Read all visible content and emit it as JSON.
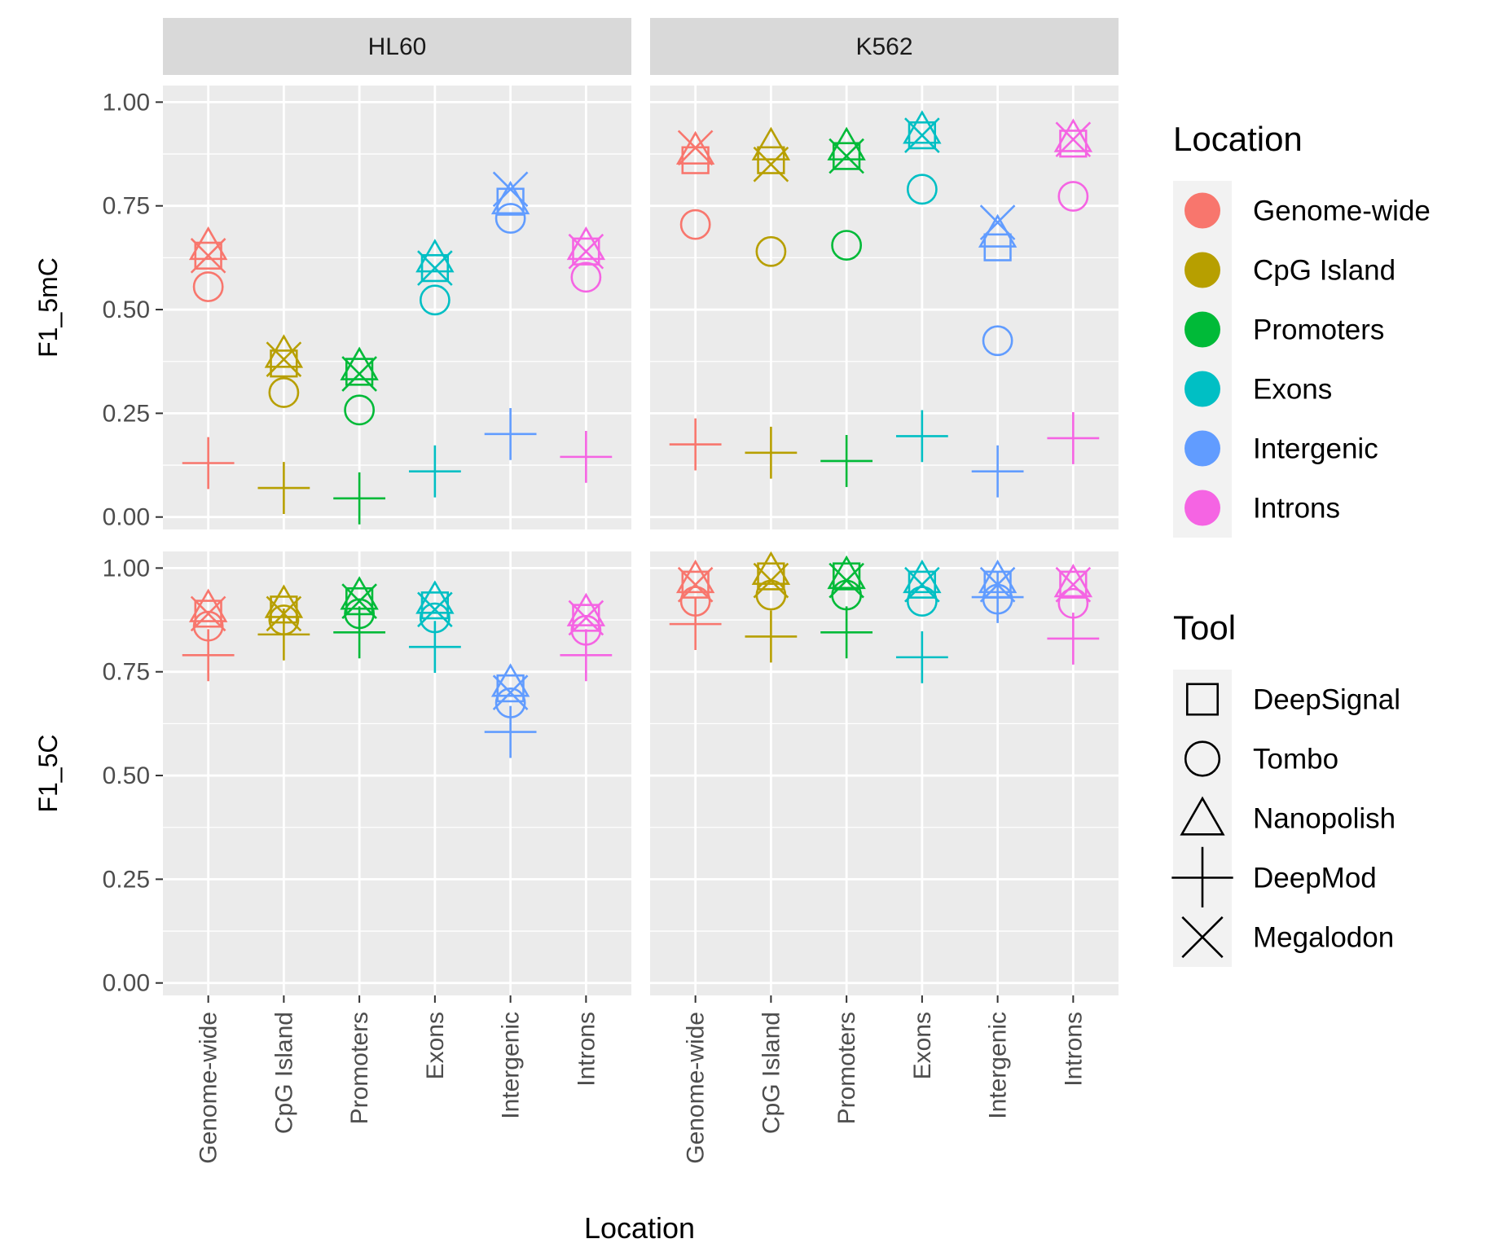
{
  "chart_data": {
    "type": "scatter",
    "xlabel": "Location",
    "categories": [
      "Genome-wide",
      "CpG Island",
      "Promoters",
      "Exons",
      "Intergenic",
      "Introns"
    ],
    "columns": [
      "HL60",
      "K562"
    ],
    "rows": [
      "F1_5mC",
      "F1_5C"
    ],
    "ylim": [
      -0.03,
      1.04
    ],
    "yticks": [
      "0.00",
      "0.25",
      "0.50",
      "0.75",
      "1.00"
    ],
    "ytick_values": [
      0,
      0.25,
      0.5,
      0.75,
      1.0
    ],
    "grid": true,
    "tools": [
      "DeepSignal",
      "Tombo",
      "Nanopolish",
      "DeepMod",
      "Megalodon"
    ],
    "tool_shapes": {
      "DeepSignal": "square",
      "Tombo": "circle",
      "Nanopolish": "triangle",
      "DeepMod": "plus",
      "Megalodon": "cross"
    },
    "location_colors": {
      "Genome-wide": "#F8766D",
      "CpG Island": "#B79F00",
      "Promoters": "#00BA38",
      "Exons": "#00BFC4",
      "Intergenic": "#619CFF",
      "Introns": "#F564E3"
    },
    "legend": {
      "position": "right",
      "location_title": "Location",
      "tool_title": "Tool"
    },
    "panels": [
      {
        "column": "HL60",
        "row": "F1_5mC",
        "values": {
          "DeepSignal": [
            0.63,
            0.37,
            0.35,
            0.6,
            0.76,
            0.64
          ],
          "Tombo": [
            0.555,
            0.3,
            0.258,
            0.523,
            0.72,
            0.578
          ],
          "Nanopolish": [
            0.65,
            0.39,
            0.36,
            0.62,
            0.76,
            0.65
          ],
          "DeepMod": [
            0.13,
            0.07,
            0.045,
            0.11,
            0.2,
            0.145
          ],
          "Megalodon": [
            0.63,
            0.38,
            0.345,
            0.6,
            0.79,
            0.64
          ]
        }
      },
      {
        "column": "K562",
        "row": "F1_5mC",
        "values": {
          "DeepSignal": [
            0.86,
            0.86,
            0.87,
            0.92,
            0.65,
            0.9
          ],
          "Tombo": [
            0.705,
            0.64,
            0.655,
            0.79,
            0.425,
            0.773
          ],
          "Nanopolish": [
            0.88,
            0.89,
            0.89,
            0.93,
            0.68,
            0.91
          ],
          "DeepMod": [
            0.175,
            0.155,
            0.135,
            0.195,
            0.11,
            0.19
          ],
          "Megalodon": [
            0.89,
            0.85,
            0.87,
            0.92,
            0.71,
            0.91
          ]
        }
      },
      {
        "column": "HL60",
        "row": "F1_5C",
        "values": {
          "DeepSignal": [
            0.89,
            0.9,
            0.92,
            0.91,
            0.71,
            0.88
          ],
          "Tombo": [
            0.86,
            0.875,
            0.89,
            0.88,
            0.675,
            0.85
          ],
          "Nanopolish": [
            0.9,
            0.91,
            0.93,
            0.92,
            0.72,
            0.89
          ],
          "DeepMod": [
            0.79,
            0.84,
            0.845,
            0.81,
            0.605,
            0.79
          ],
          "Megalodon": [
            0.89,
            0.89,
            0.92,
            0.9,
            0.7,
            0.88
          ]
        }
      },
      {
        "column": "K562",
        "row": "F1_5C",
        "values": {
          "DeepSignal": [
            0.96,
            0.98,
            0.98,
            0.96,
            0.96,
            0.96
          ],
          "Tombo": [
            0.92,
            0.935,
            0.935,
            0.92,
            0.925,
            0.915
          ],
          "Nanopolish": [
            0.97,
            0.99,
            0.98,
            0.97,
            0.97,
            0.96
          ],
          "DeepMod": [
            0.865,
            0.835,
            0.845,
            0.785,
            0.93,
            0.83
          ],
          "Megalodon": [
            0.96,
            0.97,
            0.97,
            0.96,
            0.96,
            0.96
          ]
        }
      }
    ]
  }
}
